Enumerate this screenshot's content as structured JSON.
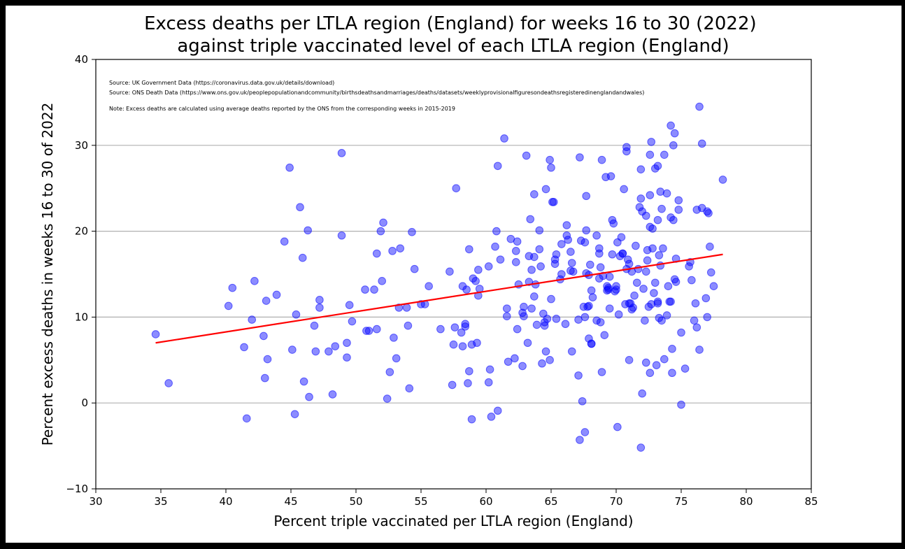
{
  "chart_data": {
    "type": "scatter",
    "title": [
      "Excess deaths per LTLA region (England) for weeks 16 to 30 (2022)",
      "against triple vaccinated level of each LTLA region (England)"
    ],
    "xlabel": "Percent triple vaccinated per LTLA region (England)",
    "ylabel": "Percent excess deaths in weeks 16 to 30 of 2022",
    "xlim": [
      30,
      85
    ],
    "ylim": [
      -10,
      40
    ],
    "xticks": [
      "30",
      "35",
      "40",
      "45",
      "50",
      "55",
      "60",
      "65",
      "70",
      "75",
      "80",
      "85"
    ],
    "yticks": [
      "−10",
      "0",
      "10",
      "20",
      "30",
      "40"
    ],
    "ytick_values": [
      -10,
      0,
      10,
      20,
      30,
      40
    ],
    "grid": "horizontal",
    "annotations": [
      "Source: UK Government Data (https://coronavirus.data.gov.uk/details/download)",
      "Source: ONS Death Data (https://www.ons.gov.uk/peoplepopulationandcommunity/birthsdeathsandmarriages/deaths/datasets/weeklyprovisionalfiguresondeathsregisteredinenglandandwales)",
      "Note: Excess deaths are calculated using average deaths reported by the ONS from the corresponding weeks in 2015-2019"
    ],
    "point_color": "#0000ff",
    "trend_color": "#ff0000",
    "trendline": {
      "x": [
        34.6,
        78.2
      ],
      "y": [
        7.0,
        17.3
      ]
    },
    "points": [
      [
        34.6,
        8.0
      ],
      [
        35.6,
        2.3
      ],
      [
        40.2,
        11.3
      ],
      [
        40.5,
        13.4
      ],
      [
        41.4,
        6.5
      ],
      [
        41.6,
        -1.8
      ],
      [
        42.0,
        9.7
      ],
      [
        42.2,
        14.2
      ],
      [
        42.9,
        7.8
      ],
      [
        43.0,
        2.9
      ],
      [
        43.1,
        11.9
      ],
      [
        43.2,
        5.1
      ],
      [
        43.9,
        12.6
      ],
      [
        44.5,
        18.8
      ],
      [
        44.9,
        27.4
      ],
      [
        45.1,
        6.2
      ],
      [
        45.3,
        -1.3
      ],
      [
        45.4,
        10.3
      ],
      [
        45.7,
        22.8
      ],
      [
        45.9,
        16.9
      ],
      [
        46.0,
        2.5
      ],
      [
        46.3,
        20.1
      ],
      [
        46.4,
        0.7
      ],
      [
        46.8,
        9.0
      ],
      [
        46.9,
        6.0
      ],
      [
        47.2,
        11.1
      ],
      [
        47.2,
        12.0
      ],
      [
        47.9,
        6.0
      ],
      [
        48.2,
        1.0
      ],
      [
        48.4,
        6.6
      ],
      [
        48.9,
        19.5
      ],
      [
        48.9,
        29.1
      ],
      [
        49.3,
        7.0
      ],
      [
        49.3,
        5.3
      ],
      [
        49.5,
        11.4
      ],
      [
        49.7,
        9.5
      ],
      [
        50.7,
        13.2
      ],
      [
        50.8,
        8.4
      ],
      [
        51.0,
        8.4
      ],
      [
        51.4,
        13.2
      ],
      [
        51.6,
        8.6
      ],
      [
        51.6,
        17.4
      ],
      [
        51.9,
        20.0
      ],
      [
        52.0,
        14.2
      ],
      [
        52.1,
        21.0
      ],
      [
        52.4,
        0.5
      ],
      [
        52.6,
        3.6
      ],
      [
        52.8,
        17.7
      ],
      [
        52.9,
        7.6
      ],
      [
        53.1,
        5.2
      ],
      [
        53.3,
        11.1
      ],
      [
        53.4,
        18.0
      ],
      [
        53.9,
        11.1
      ],
      [
        54.0,
        9.0
      ],
      [
        54.1,
        1.7
      ],
      [
        54.3,
        19.9
      ],
      [
        54.5,
        15.6
      ],
      [
        55.0,
        11.5
      ],
      [
        55.3,
        11.5
      ],
      [
        55.6,
        13.6
      ],
      [
        56.5,
        8.6
      ],
      [
        57.2,
        15.3
      ],
      [
        57.4,
        2.1
      ],
      [
        57.5,
        6.8
      ],
      [
        57.6,
        8.8
      ],
      [
        57.7,
        25.0
      ],
      [
        58.1,
        8.2
      ],
      [
        58.2,
        13.6
      ],
      [
        58.2,
        6.6
      ],
      [
        58.4,
        9.2
      ],
      [
        58.4,
        8.9
      ],
      [
        58.5,
        13.2
      ],
      [
        58.6,
        2.3
      ],
      [
        58.7,
        17.9
      ],
      [
        58.7,
        3.7
      ],
      [
        58.9,
        -1.9
      ],
      [
        58.9,
        6.8
      ],
      [
        59.0,
        14.5
      ],
      [
        59.2,
        14.2
      ],
      [
        59.3,
        7.0
      ],
      [
        59.4,
        12.5
      ],
      [
        59.4,
        15.5
      ],
      [
        59.5,
        13.3
      ],
      [
        60.2,
        15.9
      ],
      [
        60.2,
        2.4
      ],
      [
        60.3,
        3.9
      ],
      [
        60.4,
        -1.6
      ],
      [
        60.7,
        18.2
      ],
      [
        60.8,
        20.0
      ],
      [
        60.9,
        27.6
      ],
      [
        60.9,
        -0.9
      ],
      [
        61.1,
        16.7
      ],
      [
        61.4,
        30.8
      ],
      [
        61.6,
        11.0
      ],
      [
        61.6,
        10.1
      ],
      [
        61.7,
        4.8
      ],
      [
        61.9,
        19.1
      ],
      [
        62.2,
        5.2
      ],
      [
        62.3,
        17.7
      ],
      [
        62.3,
        16.4
      ],
      [
        62.4,
        18.8
      ],
      [
        62.4,
        8.6
      ],
      [
        62.5,
        13.8
      ],
      [
        62.8,
        4.3
      ],
      [
        62.8,
        10.5
      ],
      [
        62.9,
        11.2
      ],
      [
        62.9,
        10.1
      ],
      [
        63.1,
        28.8
      ],
      [
        63.2,
        7.0
      ],
      [
        63.3,
        14.1
      ],
      [
        63.3,
        17.1
      ],
      [
        63.4,
        21.4
      ],
      [
        63.5,
        11.0
      ],
      [
        63.5,
        15.5
      ],
      [
        63.7,
        12.4
      ],
      [
        63.7,
        24.3
      ],
      [
        63.7,
        17.0
      ],
      [
        63.8,
        13.8
      ],
      [
        63.9,
        9.1
      ],
      [
        64.1,
        20.1
      ],
      [
        64.1,
        17.9
      ],
      [
        64.2,
        15.9
      ],
      [
        64.3,
        4.6
      ],
      [
        64.4,
        10.4
      ],
      [
        64.5,
        9.4
      ],
      [
        64.5,
        9.0
      ],
      [
        64.6,
        6.0
      ],
      [
        64.6,
        24.9
      ],
      [
        64.7,
        9.8
      ],
      [
        64.9,
        5.0
      ],
      [
        64.9,
        28.3
      ],
      [
        65.0,
        12.1
      ],
      [
        65.0,
        27.4
      ],
      [
        65.1,
        23.4
      ],
      [
        65.2,
        23.4
      ],
      [
        65.3,
        16.2
      ],
      [
        65.3,
        16.7
      ],
      [
        65.4,
        9.8
      ],
      [
        65.4,
        17.3
      ],
      [
        65.7,
        14.4
      ],
      [
        65.8,
        15.0
      ],
      [
        65.8,
        18.5
      ],
      [
        66.1,
        9.2
      ],
      [
        66.2,
        20.7
      ],
      [
        66.2,
        19.5
      ],
      [
        66.3,
        19.0
      ],
      [
        66.5,
        15.4
      ],
      [
        66.5,
        17.6
      ],
      [
        66.6,
        6.0
      ],
      [
        66.6,
        16.3
      ],
      [
        66.7,
        15.3
      ],
      [
        67.1,
        9.7
      ],
      [
        67.1,
        3.2
      ],
      [
        67.2,
        -4.3
      ],
      [
        67.2,
        28.6
      ],
      [
        67.3,
        18.9
      ],
      [
        67.4,
        0.2
      ],
      [
        67.5,
        11.2
      ],
      [
        67.6,
        10.0
      ],
      [
        67.6,
        18.7
      ],
      [
        67.6,
        -3.4
      ],
      [
        67.7,
        20.1
      ],
      [
        67.7,
        15.1
      ],
      [
        67.7,
        24.1
      ],
      [
        67.8,
        11.2
      ],
      [
        67.9,
        7.5
      ],
      [
        67.9,
        11.3
      ],
      [
        67.9,
        14.9
      ],
      [
        68.0,
        16.1
      ],
      [
        68.1,
        6.9
      ],
      [
        68.1,
        13.1
      ],
      [
        68.1,
        6.9
      ],
      [
        68.2,
        12.3
      ],
      [
        68.5,
        9.6
      ],
      [
        68.5,
        19.5
      ],
      [
        68.7,
        18.0
      ],
      [
        68.7,
        14.5
      ],
      [
        68.7,
        17.4
      ],
      [
        68.8,
        9.4
      ],
      [
        68.8,
        15.8
      ],
      [
        68.9,
        28.3
      ],
      [
        68.9,
        3.6
      ],
      [
        69.0,
        14.8
      ],
      [
        69.1,
        7.9
      ],
      [
        69.2,
        26.3
      ],
      [
        69.3,
        13.6
      ],
      [
        69.3,
        13.1
      ],
      [
        69.4,
        13.2
      ],
      [
        69.4,
        13.4
      ],
      [
        69.5,
        11.0
      ],
      [
        69.5,
        14.7
      ],
      [
        69.6,
        26.4
      ],
      [
        69.7,
        21.3
      ],
      [
        69.7,
        17.3
      ],
      [
        69.8,
        20.9
      ],
      [
        69.9,
        13.0
      ],
      [
        70.0,
        13.6
      ],
      [
        70.0,
        13.2
      ],
      [
        70.1,
        -2.8
      ],
      [
        70.1,
        18.7
      ],
      [
        70.2,
        10.3
      ],
      [
        70.3,
        17.1
      ],
      [
        70.4,
        19.3
      ],
      [
        70.5,
        17.4
      ],
      [
        70.5,
        17.4
      ],
      [
        70.6,
        24.9
      ],
      [
        70.7,
        11.5
      ],
      [
        70.8,
        15.6
      ],
      [
        70.8,
        29.3
      ],
      [
        70.8,
        29.8
      ],
      [
        70.9,
        16.7
      ],
      [
        71.0,
        11.6
      ],
      [
        71.0,
        5.0
      ],
      [
        71.0,
        16.2
      ],
      [
        71.1,
        11.6
      ],
      [
        71.2,
        15.3
      ],
      [
        71.2,
        10.9
      ],
      [
        71.3,
        11.1
      ],
      [
        71.4,
        12.5
      ],
      [
        71.5,
        18.3
      ],
      [
        71.6,
        14.0
      ],
      [
        71.7,
        15.6
      ],
      [
        71.8,
        22.8
      ],
      [
        71.9,
        23.8
      ],
      [
        71.9,
        -5.2
      ],
      [
        71.9,
        27.2
      ],
      [
        72.0,
        1.1
      ],
      [
        72.0,
        22.3
      ],
      [
        72.1,
        13.3
      ],
      [
        72.2,
        9.6
      ],
      [
        72.3,
        15.3
      ],
      [
        72.3,
        21.8
      ],
      [
        72.3,
        4.7
      ],
      [
        72.4,
        16.6
      ],
      [
        72.4,
        17.8
      ],
      [
        72.5,
        11.2
      ],
      [
        72.6,
        20.5
      ],
      [
        72.6,
        3.5
      ],
      [
        72.6,
        24.2
      ],
      [
        72.6,
        28.9
      ],
      [
        72.7,
        30.4
      ],
      [
        72.7,
        11.5
      ],
      [
        72.8,
        20.3
      ],
      [
        72.8,
        18.0
      ],
      [
        72.9,
        12.8
      ],
      [
        73.0,
        27.3
      ],
      [
        73.0,
        14.0
      ],
      [
        73.1,
        4.4
      ],
      [
        73.2,
        27.6
      ],
      [
        73.2,
        11.6
      ],
      [
        73.2,
        21.3
      ],
      [
        73.2,
        11.8
      ],
      [
        73.3,
        17.2
      ],
      [
        73.3,
        9.9
      ],
      [
        73.4,
        16.0
      ],
      [
        73.4,
        24.6
      ],
      [
        73.5,
        9.6
      ],
      [
        73.5,
        22.6
      ],
      [
        73.6,
        18.0
      ],
      [
        73.7,
        5.1
      ],
      [
        73.7,
        28.9
      ],
      [
        73.9,
        24.4
      ],
      [
        73.9,
        10.2
      ],
      [
        74.0,
        13.6
      ],
      [
        74.1,
        11.8
      ],
      [
        74.2,
        11.8
      ],
      [
        74.2,
        21.6
      ],
      [
        74.2,
        32.3
      ],
      [
        74.3,
        6.3
      ],
      [
        74.3,
        3.5
      ],
      [
        74.4,
        30.0
      ],
      [
        74.4,
        21.3
      ],
      [
        74.5,
        14.4
      ],
      [
        74.5,
        31.4
      ],
      [
        74.6,
        14.1
      ],
      [
        74.6,
        16.8
      ],
      [
        74.8,
        23.6
      ],
      [
        74.8,
        22.5
      ],
      [
        75.0,
        -0.2
      ],
      [
        75.0,
        8.2
      ],
      [
        75.3,
        4.0
      ],
      [
        75.6,
        15.9
      ],
      [
        75.7,
        16.4
      ],
      [
        75.8,
        14.3
      ],
      [
        76.0,
        9.6
      ],
      [
        76.1,
        11.6
      ],
      [
        76.2,
        8.8
      ],
      [
        76.2,
        22.5
      ],
      [
        76.4,
        6.2
      ],
      [
        76.4,
        34.5
      ],
      [
        76.6,
        30.2
      ],
      [
        76.6,
        22.7
      ],
      [
        76.9,
        12.2
      ],
      [
        77.0,
        10.0
      ],
      [
        77.0,
        22.3
      ],
      [
        77.1,
        22.1
      ],
      [
        77.2,
        18.2
      ],
      [
        77.3,
        15.2
      ],
      [
        77.5,
        13.6
      ],
      [
        78.2,
        26.0
      ]
    ]
  }
}
